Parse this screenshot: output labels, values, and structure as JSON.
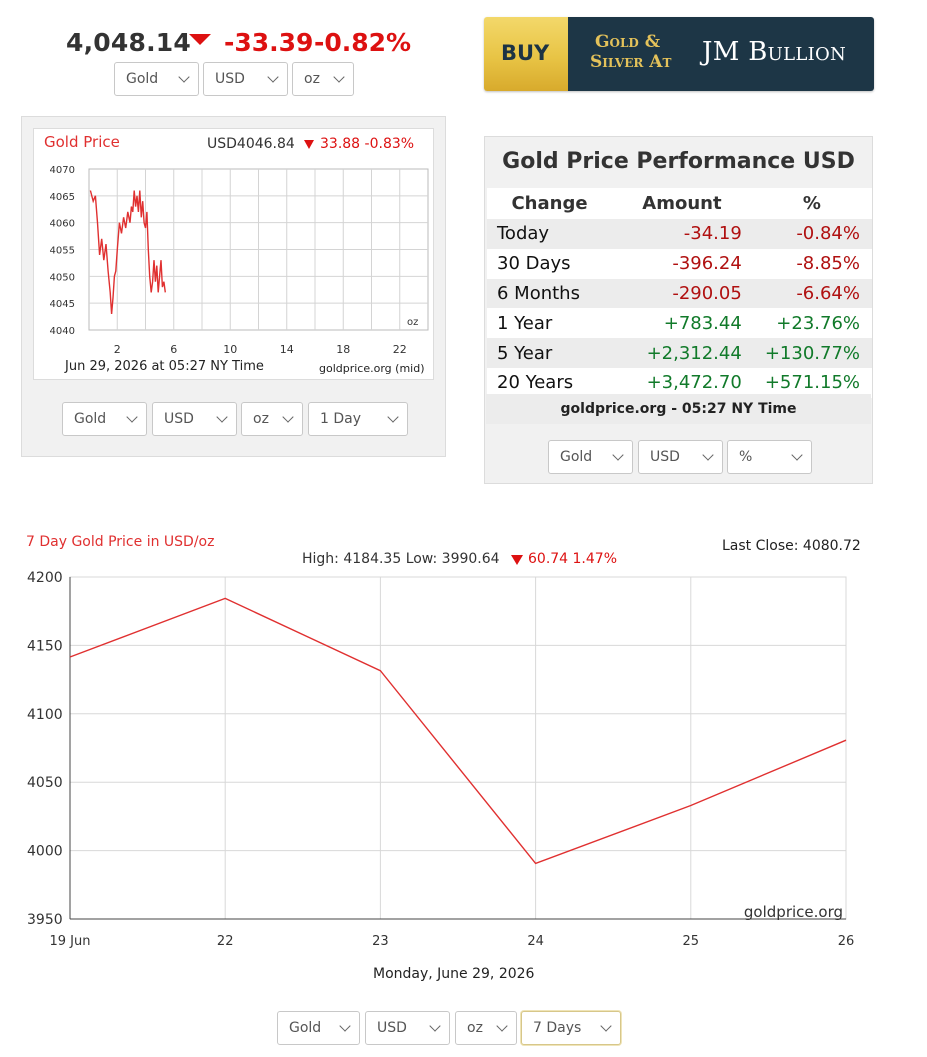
{
  "header": {
    "price": "4,048.14",
    "change": "-33.39",
    "change_pct": "-0.82%",
    "selects": {
      "metal": "Gold",
      "currency": "USD",
      "unit": "oz"
    }
  },
  "ad": {
    "buy": "BUY",
    "line1": "Gold &",
    "line2": "Silver At",
    "brand": "JM Bullion",
    "colors": {
      "gold": "#e8c445",
      "navy": "#1d3646"
    }
  },
  "small_chart": {
    "title": "Gold Price",
    "usd_price": "USD4046.84",
    "change": "33.88 -0.83%",
    "unit_label": "oz",
    "timestamp": "Jun 29, 2026 at 05:27 NY Time",
    "source": "goldprice.org (mid)",
    "selects": {
      "metal": "Gold",
      "currency": "USD",
      "unit": "oz",
      "range": "1 Day"
    }
  },
  "performance": {
    "title": "Gold Price Performance USD",
    "headers": [
      "Change",
      "Amount",
      "%"
    ],
    "rows": [
      {
        "label": "Today",
        "amount": "-34.19",
        "pct": "-0.84%",
        "sign": "neg"
      },
      {
        "label": "30 Days",
        "amount": "-396.24",
        "pct": "-8.85%",
        "sign": "neg"
      },
      {
        "label": "6 Months",
        "amount": "-290.05",
        "pct": "-6.64%",
        "sign": "neg"
      },
      {
        "label": "1 Year",
        "amount": "+783.44",
        "pct": "+23.76%",
        "sign": "pos"
      },
      {
        "label": "5 Year",
        "amount": "+2,312.44",
        "pct": "+130.77%",
        "sign": "pos"
      },
      {
        "label": "20 Years",
        "amount": "+3,472.70",
        "pct": "+571.15%",
        "sign": "pos"
      }
    ],
    "footer": "goldprice.org - 05:27 NY Time",
    "selects": {
      "metal": "Gold",
      "currency": "USD",
      "mode": "%"
    },
    "colors": {
      "negative": "#b01010",
      "positive": "#117a2a"
    }
  },
  "big_chart": {
    "title": "7 Day Gold Price in USD/oz",
    "last_close": "Last Close: 4080.72",
    "high_low": "High: 4184.35 Low: 3990.64",
    "change": "60.74 1.47%",
    "watermark": "goldprice.org",
    "date": "Monday, June 29, 2026",
    "selects": {
      "metal": "Gold",
      "currency": "USD",
      "unit": "oz",
      "range": "7 Days"
    }
  },
  "chart_data": [
    {
      "type": "line",
      "title": "Gold Price",
      "x_ticks": [
        "2",
        "6",
        "10",
        "14",
        "18",
        "22"
      ],
      "x_tick_values": [
        2,
        6,
        10,
        14,
        18,
        22
      ],
      "xlim": [
        0,
        24
      ],
      "y_ticks": [
        "4070",
        "4065",
        "4060",
        "4055",
        "4050",
        "4045",
        "4040"
      ],
      "ylim": [
        4040,
        4070
      ],
      "grid": true,
      "line_color": "#e03030",
      "series": [
        {
          "x": [
            0.1,
            0.3,
            0.45,
            0.6,
            0.75,
            0.9,
            1.05,
            1.2,
            1.35,
            1.5,
            1.6,
            1.7,
            1.8,
            1.9,
            2.0,
            2.15,
            2.3,
            2.45,
            2.6,
            2.75,
            2.9,
            3.0,
            3.1,
            3.2,
            3.3,
            3.4,
            3.5,
            3.6,
            3.7,
            3.8,
            3.9,
            4.0,
            4.1,
            4.2,
            4.3,
            4.4,
            4.5,
            4.6,
            4.7,
            4.8,
            4.9,
            5.0,
            5.1,
            5.2,
            5.3,
            5.4
          ],
          "y": [
            4066,
            4064,
            4065,
            4060,
            4054,
            4057,
            4053,
            4056,
            4051,
            4047,
            4043,
            4046,
            4050,
            4051,
            4055,
            4060,
            4058,
            4061,
            4059,
            4062,
            4060,
            4063,
            4062,
            4066,
            4063,
            4065,
            4062,
            4066,
            4061,
            4064,
            4060,
            4059,
            4062,
            4055,
            4050,
            4047,
            4049,
            4053,
            4049,
            4052,
            4047,
            4050,
            4053,
            4048,
            4049,
            4047
          ]
        }
      ]
    },
    {
      "type": "line",
      "title": "7 Day Gold Price in USD/oz",
      "categories": [
        "19 Jun",
        "22",
        "23",
        "24",
        "25",
        "26"
      ],
      "values": [
        4141.5,
        4184.35,
        4131.5,
        3990.64,
        4033.0,
        4080.72
      ],
      "y_ticks": [
        3950,
        4000,
        4050,
        4100,
        4150,
        4200
      ],
      "ylim": [
        3950,
        4200
      ],
      "grid": true,
      "line_color": "#e03030"
    }
  ]
}
